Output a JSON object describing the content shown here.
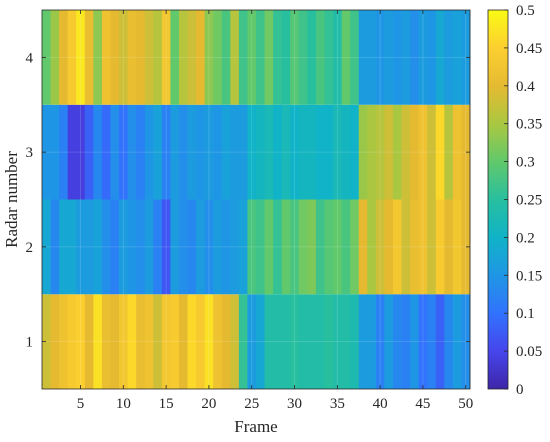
{
  "chart_data": {
    "type": "heatmap",
    "title": "",
    "xlabel": "Frame",
    "ylabel": "Radar number",
    "xlim": [
      0.5,
      50.5
    ],
    "ylim": [
      0.5,
      4.5
    ],
    "x_ticks": [
      5,
      10,
      15,
      20,
      25,
      30,
      35,
      40,
      45,
      50
    ],
    "y_ticks": [
      1,
      2,
      3,
      4
    ],
    "colormap": "parula",
    "colorbar": {
      "range": [
        0,
        0.5
      ],
      "ticks": [
        0,
        0.05,
        0.1,
        0.15,
        0.2,
        0.25,
        0.3,
        0.35,
        0.4,
        0.45,
        0.5
      ],
      "tick_labels": [
        "0",
        "0.05",
        "0.1",
        "0.15",
        "0.2",
        "0.25",
        "0.3",
        "0.35",
        "0.4",
        "0.45",
        "0.5"
      ]
    },
    "grid": true,
    "frames": [
      1,
      2,
      3,
      4,
      5,
      6,
      7,
      8,
      9,
      10,
      11,
      12,
      13,
      14,
      15,
      16,
      17,
      18,
      19,
      20,
      21,
      22,
      23,
      24,
      25,
      26,
      27,
      28,
      29,
      30,
      31,
      32,
      33,
      34,
      35,
      36,
      37,
      38,
      39,
      40,
      41,
      42,
      43,
      44,
      45,
      46,
      47,
      48,
      49,
      50
    ],
    "rows": [
      {
        "radar": 1,
        "values": [
          0.38,
          0.4,
          0.42,
          0.44,
          0.45,
          0.4,
          0.47,
          0.41,
          0.4,
          0.43,
          0.46,
          0.41,
          0.42,
          0.38,
          0.43,
          0.44,
          0.4,
          0.46,
          0.44,
          0.47,
          0.42,
          0.4,
          0.38,
          0.26,
          0.16,
          0.18,
          0.24,
          0.24,
          0.24,
          0.25,
          0.24,
          0.24,
          0.24,
          0.25,
          0.24,
          0.24,
          0.23,
          0.16,
          0.16,
          0.12,
          0.16,
          0.13,
          0.12,
          0.15,
          0.1,
          0.12,
          0.08,
          0.13,
          0.16,
          0.14
        ]
      },
      {
        "radar": 2,
        "values": [
          0.18,
          0.13,
          0.18,
          0.18,
          0.16,
          0.16,
          0.17,
          0.14,
          0.12,
          0.16,
          0.15,
          0.14,
          0.16,
          0.12,
          0.07,
          0.16,
          0.14,
          0.13,
          0.16,
          0.14,
          0.16,
          0.15,
          0.16,
          0.17,
          0.28,
          0.27,
          0.3,
          0.26,
          0.3,
          0.28,
          0.31,
          0.32,
          0.27,
          0.29,
          0.3,
          0.28,
          0.31,
          0.4,
          0.35,
          0.38,
          0.4,
          0.43,
          0.38,
          0.41,
          0.42,
          0.38,
          0.44,
          0.4,
          0.43,
          0.4
        ]
      },
      {
        "radar": 3,
        "values": [
          0.15,
          0.15,
          0.12,
          0.04,
          0.04,
          0.08,
          0.13,
          0.09,
          0.14,
          0.1,
          0.14,
          0.12,
          0.15,
          0.17,
          0.12,
          0.16,
          0.14,
          0.16,
          0.15,
          0.16,
          0.15,
          0.17,
          0.16,
          0.16,
          0.2,
          0.21,
          0.22,
          0.2,
          0.22,
          0.2,
          0.21,
          0.21,
          0.2,
          0.2,
          0.22,
          0.21,
          0.2,
          0.34,
          0.35,
          0.36,
          0.38,
          0.35,
          0.38,
          0.4,
          0.42,
          0.38,
          0.46,
          0.36,
          0.42,
          0.4
        ]
      },
      {
        "radar": 4,
        "values": [
          0.3,
          0.34,
          0.4,
          0.44,
          0.48,
          0.41,
          0.33,
          0.42,
          0.4,
          0.38,
          0.41,
          0.4,
          0.38,
          0.36,
          0.43,
          0.3,
          0.36,
          0.38,
          0.4,
          0.33,
          0.31,
          0.28,
          0.36,
          0.27,
          0.3,
          0.27,
          0.31,
          0.26,
          0.25,
          0.29,
          0.27,
          0.25,
          0.28,
          0.26,
          0.24,
          0.3,
          0.27,
          0.16,
          0.16,
          0.15,
          0.16,
          0.15,
          0.16,
          0.14,
          0.16,
          0.15,
          0.18,
          0.16,
          0.17,
          0.16
        ]
      }
    ]
  }
}
